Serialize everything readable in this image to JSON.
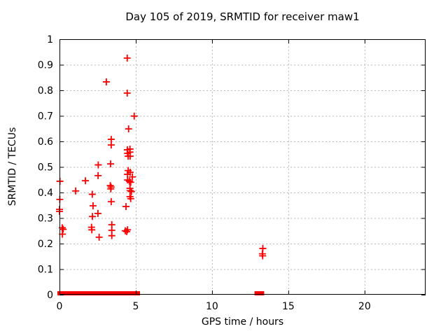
{
  "chart_data": {
    "type": "scatter",
    "title": "Day 105 of 2019, SRMTID for receiver maw1",
    "xlabel": "GPS time / hours",
    "ylabel": "SRMTID / TECUs",
    "xlim": [
      0,
      24
    ],
    "ylim": [
      0,
      1
    ],
    "xticks": [
      0,
      5,
      10,
      15,
      20
    ],
    "xtick_labels": [
      "0",
      "5",
      "10",
      "15",
      "20"
    ],
    "yticks": [
      0,
      0.1,
      0.2,
      0.3,
      0.4,
      0.5,
      0.6,
      0.7,
      0.8,
      0.9,
      1
    ],
    "ytick_labels": [
      "0",
      "0.1",
      "0.2",
      "0.3",
      "0.4",
      "0.5",
      "0.6",
      "0.7",
      "0.8",
      "0.9",
      "1"
    ],
    "grid": true,
    "legend_position": "none",
    "marker": "plus",
    "colors": {
      "marker": "#ff0000",
      "grid": "#b8b8b8",
      "frame": "#000000",
      "text": "#000000",
      "background": "#ffffff"
    },
    "series": [
      {
        "name": "SRMTID",
        "points": [
          [
            0.03,
            0.444
          ],
          [
            0.02,
            0.373
          ],
          [
            0.0,
            0.334
          ],
          [
            0.0,
            0.326
          ],
          [
            0.18,
            0.262
          ],
          [
            0.24,
            0.256
          ],
          [
            0.19,
            0.237
          ],
          [
            1.06,
            0.406
          ],
          [
            1.7,
            0.446
          ],
          [
            2.15,
            0.393
          ],
          [
            2.2,
            0.348
          ],
          [
            2.16,
            0.306
          ],
          [
            2.1,
            0.264
          ],
          [
            2.12,
            0.254
          ],
          [
            2.54,
            0.508
          ],
          [
            2.53,
            0.466
          ],
          [
            2.52,
            0.318
          ],
          [
            2.6,
            0.225
          ],
          [
            3.07,
            0.833
          ],
          [
            3.39,
            0.608
          ],
          [
            3.39,
            0.586
          ],
          [
            3.35,
            0.512
          ],
          [
            3.33,
            0.427
          ],
          [
            3.38,
            0.421
          ],
          [
            3.36,
            0.414
          ],
          [
            3.39,
            0.364
          ],
          [
            3.43,
            0.274
          ],
          [
            3.43,
            0.252
          ],
          [
            3.43,
            0.231
          ],
          [
            4.36,
            0.345
          ],
          [
            4.31,
            0.25
          ],
          [
            4.41,
            0.247
          ],
          [
            4.46,
            0.254
          ],
          [
            4.44,
            0.926
          ],
          [
            4.44,
            0.789
          ],
          [
            4.9,
            0.699
          ],
          [
            4.53,
            0.649
          ],
          [
            4.45,
            0.567
          ],
          [
            4.62,
            0.57
          ],
          [
            4.46,
            0.553
          ],
          [
            4.62,
            0.558
          ],
          [
            4.5,
            0.542
          ],
          [
            4.63,
            0.542
          ],
          [
            4.5,
            0.486
          ],
          [
            4.63,
            0.479
          ],
          [
            4.46,
            0.471
          ],
          [
            4.78,
            0.461
          ],
          [
            4.46,
            0.449
          ],
          [
            4.58,
            0.444
          ],
          [
            4.67,
            0.44
          ],
          [
            4.62,
            0.416
          ],
          [
            4.63,
            0.407
          ],
          [
            4.72,
            0.404
          ],
          [
            4.62,
            0.384
          ],
          [
            4.67,
            0.376
          ],
          [
            13.33,
            0.181
          ],
          [
            13.3,
            0.16
          ],
          [
            13.32,
            0.152
          ]
        ]
      }
    ],
    "zero_value_runs": [
      [
        0.0,
        1.73
      ],
      [
        1.86,
        2.24
      ],
      [
        2.33,
        3.4
      ],
      [
        3.56,
        4.07
      ],
      [
        4.23,
        4.62
      ],
      [
        4.73,
        5.14
      ],
      [
        12.92,
        13.28
      ]
    ]
  }
}
